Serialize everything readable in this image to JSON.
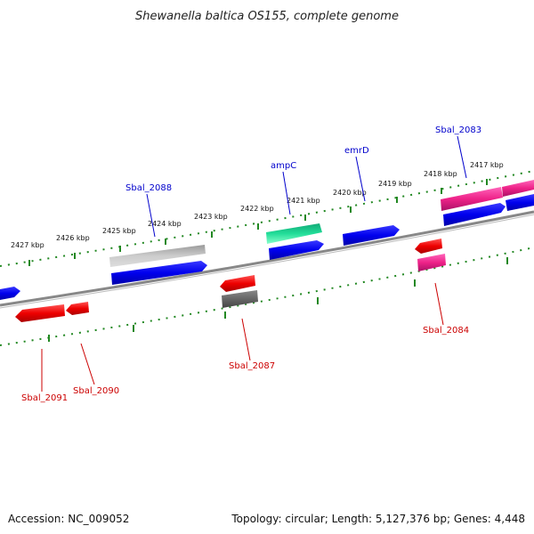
{
  "title": "Shewanella baltica OS155, complete genome",
  "footer": {
    "accession": "Accession: NC_009052",
    "topology": "Topology: circular; Length: 5,127,376 bp; Genes: 4,448"
  },
  "scale_labels": [
    "2427 kbp",
    "2426 kbp",
    "2425 kbp",
    "2424 kbp",
    "2423 kbp",
    "2422 kbp",
    "2421 kbp",
    "2420 kbp",
    "2419 kbp",
    "2418 kbp",
    "2417 kbp"
  ],
  "gene_labels": [
    {
      "text": "Sbal_2088",
      "strand": "forward"
    },
    {
      "text": "ampC",
      "strand": "forward"
    },
    {
      "text": "emrD",
      "strand": "forward"
    },
    {
      "text": "Sbal_2083",
      "strand": "forward"
    },
    {
      "text": "Sbal_2084",
      "strand": "reverse"
    },
    {
      "text": "Sbal_2087",
      "strand": "reverse"
    },
    {
      "text": "Sbal_2090",
      "strand": "reverse"
    },
    {
      "text": "Sbal_2091",
      "strand": "reverse"
    }
  ],
  "colors": {
    "cds": "#0000ee",
    "pseudo": "#aaaaaa",
    "rna": "#22dd99",
    "trna": "#ee2288",
    "reverse_cds": "#ee0000",
    "reverse_gray": "#555555",
    "forward_label": "#0000cc",
    "reverse_label": "#cc0000",
    "ticks": "#228822",
    "backbone": "#888888"
  }
}
